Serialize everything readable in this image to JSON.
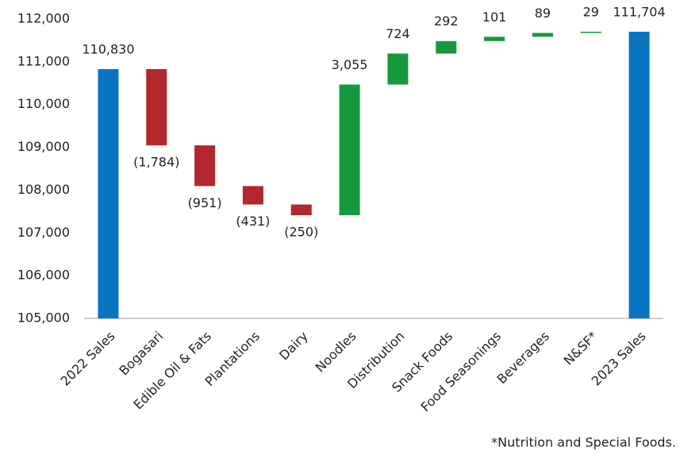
{
  "chart_data": {
    "type": "waterfall",
    "categories": [
      "2022 Sales",
      "Bogasari",
      "Edible Oil & Fats",
      "Plantations",
      "Dairy",
      "Noodles",
      "Distribution",
      "Snack Foods",
      "Food Seasonings",
      "Beverages",
      "N&SF*",
      "2023 Sales"
    ],
    "values": [
      110830,
      -1784,
      -951,
      -431,
      -250,
      3055,
      724,
      292,
      101,
      89,
      29,
      111704
    ],
    "value_labels": [
      "110,830",
      "(1,784)",
      "(951)",
      "(431)",
      "(250)",
      "3,055",
      "724",
      "292",
      "101",
      "89",
      "29",
      "111,704"
    ],
    "measure": [
      "absolute",
      "relative",
      "relative",
      "relative",
      "relative",
      "relative",
      "relative",
      "relative",
      "relative",
      "relative",
      "relative",
      "absolute"
    ],
    "colors": {
      "total": "#0a75c2",
      "increase": "#15993c",
      "decrease": "#b4272d"
    },
    "ylim": [
      105000,
      112000
    ],
    "yticks": [
      {
        "value": 105000,
        "label": "105,000"
      },
      {
        "value": 106000,
        "label": "106,000"
      },
      {
        "value": 107000,
        "label": "107,000"
      },
      {
        "value": 108000,
        "label": "108,000"
      },
      {
        "value": 109000,
        "label": "109,000"
      },
      {
        "value": 110000,
        "label": "110,000"
      },
      {
        "value": 111000,
        "label": "111,000"
      },
      {
        "value": 112000,
        "label": "112,000"
      }
    ],
    "grid": false,
    "footnote": "*Nutrition and Special Foods."
  }
}
